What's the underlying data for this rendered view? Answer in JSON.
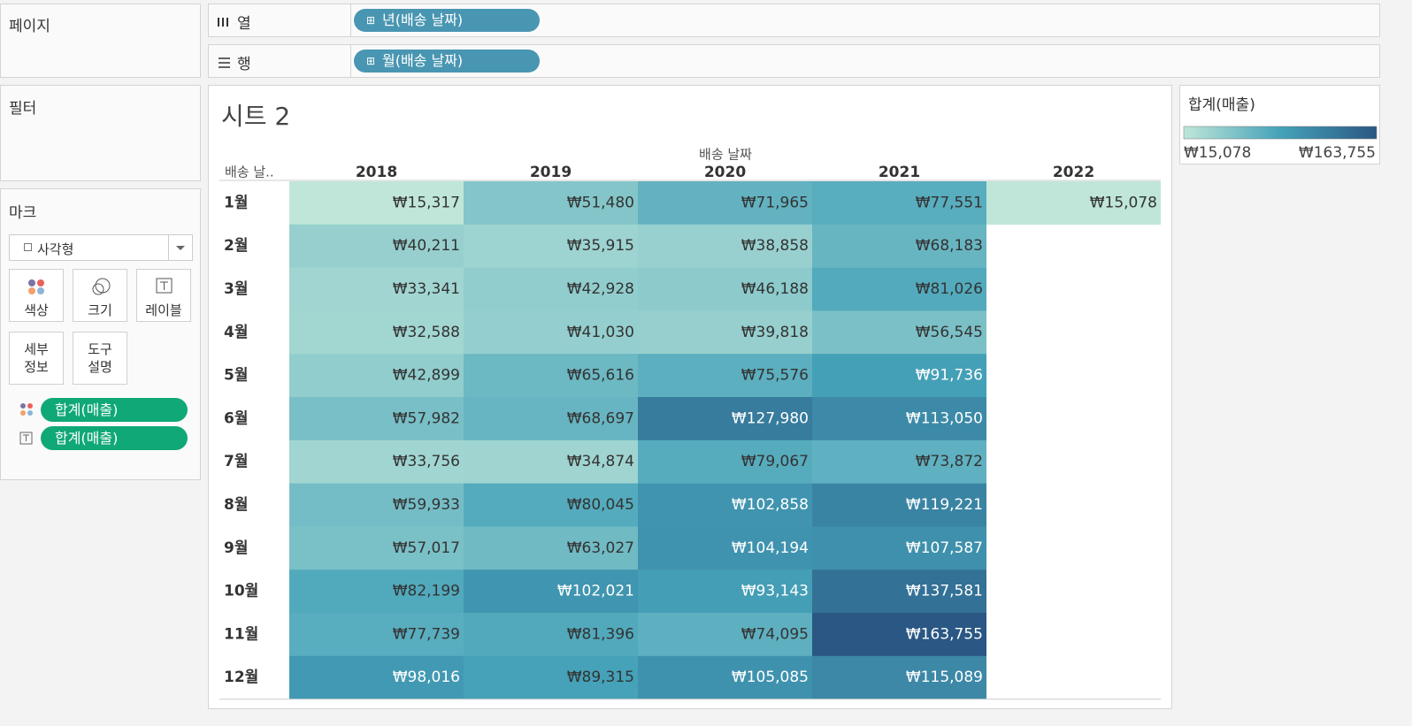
{
  "shelves": {
    "pages_label": "페이지",
    "columns_label": "열",
    "columns_pill": "년(배송 날짜)",
    "rows_label": "행",
    "rows_pill": "월(배송 날짜)"
  },
  "filters_label": "필터",
  "marks": {
    "title": "마크",
    "mark_type": "사각형",
    "cards": [
      "색상",
      "크기",
      "레이블",
      "세부 정보",
      "도구 설명"
    ],
    "pills": [
      "합계(매출)",
      "합계(매출)"
    ]
  },
  "sheet": {
    "title": "시트 2",
    "column_field": "배송 날짜",
    "row_field": "배송 날..",
    "columns": [
      "2018",
      "2019",
      "2020",
      "2021",
      "2022"
    ],
    "rows": [
      "1월",
      "2월",
      "3월",
      "4월",
      "5월",
      "6월",
      "7월",
      "8월",
      "9월",
      "10월",
      "11월",
      "12월"
    ],
    "values": [
      [
        15317,
        51480,
        71965,
        77551,
        15078
      ],
      [
        40211,
        35915,
        38858,
        68183,
        null
      ],
      [
        33341,
        42928,
        46188,
        81026,
        null
      ],
      [
        32588,
        41030,
        39818,
        56545,
        null
      ],
      [
        42899,
        65616,
        75576,
        91736,
        null
      ],
      [
        57982,
        68697,
        127980,
        113050,
        null
      ],
      [
        33756,
        34874,
        79067,
        73872,
        null
      ],
      [
        59933,
        80045,
        102858,
        119221,
        null
      ],
      [
        57017,
        63027,
        104194,
        107587,
        null
      ],
      [
        82199,
        102021,
        93143,
        137581,
        null
      ],
      [
        77739,
        81396,
        74095,
        163755,
        null
      ],
      [
        98016,
        89315,
        105085,
        115089,
        null
      ]
    ],
    "value_labels": [
      [
        "₩15,317",
        "₩51,480",
        "₩71,965",
        "₩77,551",
        "₩15,078"
      ],
      [
        "₩40,211",
        "₩35,915",
        "₩38,858",
        "₩68,183",
        null
      ],
      [
        "₩33,341",
        "₩42,928",
        "₩46,188",
        "₩81,026",
        null
      ],
      [
        "₩32,588",
        "₩41,030",
        "₩39,818",
        "₩56,545",
        null
      ],
      [
        "₩42,899",
        "₩65,616",
        "₩75,576",
        "₩91,736",
        null
      ],
      [
        "₩57,982",
        "₩68,697",
        "₩127,980",
        "₩113,050",
        null
      ],
      [
        "₩33,756",
        "₩34,874",
        "₩79,067",
        "₩73,872",
        null
      ],
      [
        "₩59,933",
        "₩80,045",
        "₩102,858",
        "₩119,221",
        null
      ],
      [
        "₩57,017",
        "₩63,027",
        "₩104,194",
        "₩107,587",
        null
      ],
      [
        "₩82,199",
        "₩102,021",
        "₩93,143",
        "₩137,581",
        null
      ],
      [
        "₩77,739",
        "₩81,396",
        "₩74,095",
        "₩163,755",
        null
      ],
      [
        "₩98,016",
        "₩89,315",
        "₩105,085",
        "₩115,089",
        null
      ]
    ]
  },
  "legend": {
    "title": "합계(매출)",
    "range": [
      {
        "value": 15078,
        "label": "₩15,078"
      },
      {
        "value": 163755,
        "label": "₩163,755"
      }
    ],
    "colors": [
      "#bfe6d9",
      "#45a2b9",
      "#2a5783"
    ]
  }
}
